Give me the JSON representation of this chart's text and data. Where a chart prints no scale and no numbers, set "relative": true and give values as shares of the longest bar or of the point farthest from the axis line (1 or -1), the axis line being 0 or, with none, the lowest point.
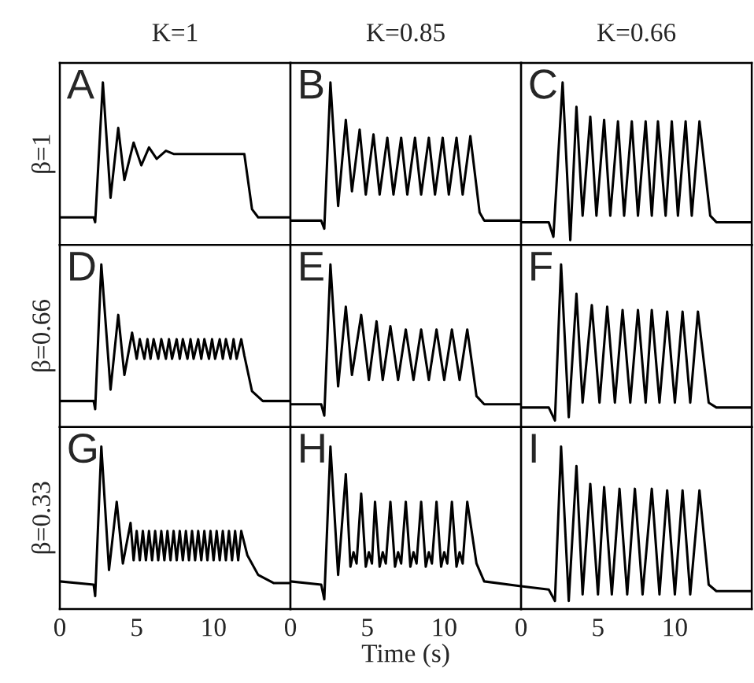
{
  "chart_data": [
    {
      "type": "line",
      "title": "K=1",
      "ylabel": "β=1",
      "annotations": [
        "A"
      ],
      "relative": true,
      "xlim": [
        0,
        15
      ],
      "xticks": [
        0,
        5,
        10
      ],
      "tick_labels": false,
      "x": [
        0,
        2.2,
        2.3,
        2.8,
        3.3,
        3.8,
        4.2,
        4.8,
        5.3,
        5.8,
        6.3,
        6.9,
        7.4,
        12.0,
        12.5,
        12.9,
        15
      ],
      "values": [
        0.17,
        0.17,
        0.14,
        1,
        0.29,
        0.72,
        0.4,
        0.63,
        0.49,
        0.6,
        0.53,
        0.58,
        0.56,
        0.56,
        0.22,
        0.17,
        0.17
      ]
    },
    {
      "type": "line",
      "title": "K=0.85",
      "annotations": [
        "B"
      ],
      "relative": true,
      "xlim": [
        0,
        15
      ],
      "xticks": [
        0,
        5,
        10
      ],
      "tick_labels": false,
      "x": [
        0,
        2.0,
        2.2,
        2.6,
        3.1,
        3.6,
        4.0,
        4.5,
        4.9,
        5.4,
        5.8,
        6.3,
        6.7,
        7.2,
        7.6,
        8.1,
        8.5,
        9.0,
        9.4,
        9.9,
        10.3,
        10.8,
        11.2,
        11.7,
        12.3,
        12.6,
        15
      ],
      "values": [
        0.15,
        0.15,
        0.1,
        1,
        0.24,
        0.77,
        0.33,
        0.71,
        0.31,
        0.68,
        0.31,
        0.66,
        0.31,
        0.66,
        0.31,
        0.66,
        0.31,
        0.66,
        0.31,
        0.66,
        0.31,
        0.66,
        0.31,
        0.67,
        0.2,
        0.15,
        0.15
      ]
    },
    {
      "type": "line",
      "title": "K=0.66",
      "annotations": [
        "C"
      ],
      "relative": true,
      "xlim": [
        0,
        15
      ],
      "xticks": [
        0,
        5,
        10
      ],
      "tick_labels": false,
      "x": [
        0,
        1.8,
        2.1,
        2.7,
        3.2,
        3.6,
        4.0,
        4.5,
        4.9,
        5.4,
        5.8,
        6.3,
        6.7,
        7.2,
        7.6,
        8.1,
        8.5,
        8.9,
        9.4,
        9.8,
        10.2,
        10.7,
        11.1,
        11.6,
        12.3,
        12.7,
        15
      ],
      "values": [
        0.14,
        0.14,
        0.05,
        1,
        0.03,
        0.85,
        0.18,
        0.79,
        0.18,
        0.77,
        0.18,
        0.76,
        0.18,
        0.76,
        0.18,
        0.76,
        0.18,
        0.76,
        0.18,
        0.76,
        0.18,
        0.76,
        0.18,
        0.76,
        0.18,
        0.14,
        0.14
      ]
    },
    {
      "type": "line",
      "ylabel": "β=0.66",
      "annotations": [
        "D"
      ],
      "relative": true,
      "xlim": [
        0,
        15
      ],
      "xticks": [
        0,
        5,
        10
      ],
      "tick_labels": false,
      "x": [
        0,
        2.2,
        2.3,
        2.7,
        3.3,
        3.8,
        4.2,
        4.7,
        5.0,
        5.2,
        5.5,
        5.7,
        5.9,
        6.1,
        6.4,
        6.6,
        6.9,
        7.1,
        7.3,
        7.6,
        7.8,
        8.0,
        8.3,
        8.5,
        8.7,
        9.0,
        9.2,
        9.4,
        9.7,
        9.9,
        10.1,
        10.4,
        10.6,
        10.8,
        11.1,
        11.3,
        11.5,
        11.8,
        12.0,
        12.5,
        13.2,
        15
      ],
      "values": [
        0.16,
        0.16,
        0.11,
        1,
        0.23,
        0.69,
        0.32,
        0.58,
        0.42,
        0.54,
        0.42,
        0.54,
        0.42,
        0.54,
        0.42,
        0.54,
        0.42,
        0.54,
        0.42,
        0.54,
        0.42,
        0.54,
        0.42,
        0.54,
        0.42,
        0.54,
        0.42,
        0.54,
        0.42,
        0.54,
        0.42,
        0.54,
        0.42,
        0.54,
        0.42,
        0.54,
        0.42,
        0.54,
        0.44,
        0.22,
        0.16,
        0.16
      ]
    },
    {
      "type": "line",
      "annotations": [
        "E"
      ],
      "relative": true,
      "xlim": [
        0,
        15
      ],
      "xticks": [
        0,
        5,
        10
      ],
      "tick_labels": false,
      "x": [
        0,
        2.0,
        2.2,
        2.6,
        3.1,
        3.6,
        4.0,
        4.6,
        5.1,
        5.6,
        6.0,
        6.5,
        7.0,
        7.5,
        8.0,
        8.5,
        9.0,
        9.5,
        10.0,
        10.5,
        11.0,
        11.5,
        12.1,
        12.6,
        15
      ],
      "values": [
        0.14,
        0.14,
        0.07,
        1,
        0.25,
        0.74,
        0.32,
        0.69,
        0.29,
        0.65,
        0.29,
        0.62,
        0.29,
        0.6,
        0.29,
        0.6,
        0.29,
        0.6,
        0.29,
        0.6,
        0.29,
        0.6,
        0.19,
        0.14,
        0.14
      ]
    },
    {
      "type": "line",
      "annotations": [
        "F"
      ],
      "relative": true,
      "xlim": [
        0,
        15
      ],
      "xticks": [
        0,
        5,
        10
      ],
      "tick_labels": false,
      "x": [
        0,
        1.8,
        2.2,
        2.6,
        3.1,
        3.6,
        4.0,
        4.6,
        5.1,
        5.6,
        6.1,
        6.6,
        7.1,
        7.6,
        8.1,
        8.5,
        9.0,
        9.5,
        10.0,
        10.5,
        11.0,
        11.5,
        12.2,
        12.7,
        15
      ],
      "values": [
        0.12,
        0.12,
        0.04,
        1,
        0.06,
        0.82,
        0.15,
        0.75,
        0.15,
        0.74,
        0.15,
        0.72,
        0.15,
        0.72,
        0.15,
        0.72,
        0.15,
        0.71,
        0.15,
        0.71,
        0.15,
        0.71,
        0.15,
        0.12,
        0.12
      ]
    },
    {
      "type": "line",
      "ylabel": "β=0.33",
      "annotations": [
        "G"
      ],
      "relative": true,
      "xlim": [
        0,
        15
      ],
      "xticks": [
        0,
        5,
        10
      ],
      "tick_labels": "x",
      "x": [
        0,
        2.2,
        2.3,
        2.7,
        3.2,
        3.7,
        4.1,
        4.6,
        4.8,
        5.0,
        5.2,
        5.4,
        5.6,
        5.8,
        6.0,
        6.2,
        6.4,
        6.6,
        6.8,
        7.0,
        7.2,
        7.4,
        7.6,
        7.8,
        8.0,
        8.2,
        8.4,
        8.6,
        8.8,
        9.0,
        9.2,
        9.4,
        9.6,
        9.8,
        10.0,
        10.2,
        10.4,
        10.6,
        10.8,
        11.0,
        11.2,
        11.4,
        11.6,
        11.8,
        12.2,
        12.9,
        13.9,
        15
      ],
      "values": [
        0.17,
        0.15,
        0.08,
        1,
        0.24,
        0.66,
        0.28,
        0.53,
        0.3,
        0.48,
        0.3,
        0.48,
        0.3,
        0.48,
        0.3,
        0.48,
        0.3,
        0.48,
        0.3,
        0.48,
        0.3,
        0.48,
        0.3,
        0.48,
        0.3,
        0.48,
        0.3,
        0.48,
        0.3,
        0.48,
        0.3,
        0.48,
        0.3,
        0.48,
        0.3,
        0.48,
        0.3,
        0.48,
        0.3,
        0.48,
        0.3,
        0.48,
        0.3,
        0.48,
        0.33,
        0.21,
        0.16,
        0.16
      ]
    },
    {
      "type": "line",
      "xlabel": "Time (s)",
      "annotations": [
        "H"
      ],
      "relative": true,
      "xlim": [
        0,
        15
      ],
      "xticks": [
        0,
        5,
        10
      ],
      "tick_labels": "x",
      "x": [
        0,
        2.0,
        2.2,
        2.6,
        3.1,
        3.6,
        3.9,
        4.1,
        4.3,
        4.6,
        4.9,
        5.1,
        5.3,
        5.5,
        5.8,
        6.0,
        6.2,
        6.5,
        6.8,
        7.0,
        7.2,
        7.5,
        7.8,
        8.0,
        8.2,
        8.5,
        8.8,
        9.0,
        9.2,
        9.5,
        9.8,
        10.0,
        10.2,
        10.5,
        10.8,
        11.0,
        11.2,
        11.5,
        12.1,
        12.6,
        15
      ],
      "values": [
        0.17,
        0.15,
        0.06,
        1,
        0.21,
        0.83,
        0.26,
        0.35,
        0.28,
        0.71,
        0.26,
        0.35,
        0.28,
        0.66,
        0.26,
        0.35,
        0.28,
        0.66,
        0.26,
        0.35,
        0.28,
        0.66,
        0.26,
        0.35,
        0.28,
        0.66,
        0.26,
        0.35,
        0.28,
        0.66,
        0.26,
        0.35,
        0.28,
        0.66,
        0.26,
        0.35,
        0.28,
        0.66,
        0.28,
        0.17,
        0.14
      ]
    },
    {
      "type": "line",
      "annotations": [
        "I"
      ],
      "relative": true,
      "xlim": [
        0,
        15
      ],
      "xticks": [
        0,
        5,
        10
      ],
      "tick_labels": "x",
      "x": [
        0,
        1.8,
        2.2,
        2.6,
        3.1,
        3.6,
        4.0,
        4.5,
        5.0,
        5.4,
        5.9,
        6.4,
        6.9,
        7.4,
        7.9,
        8.5,
        9.0,
        9.5,
        10.0,
        10.5,
        11.0,
        11.6,
        12.2,
        12.7,
        15
      ],
      "values": [
        0.14,
        0.12,
        0.05,
        1,
        0.05,
        0.88,
        0.09,
        0.77,
        0.09,
        0.75,
        0.09,
        0.74,
        0.09,
        0.74,
        0.09,
        0.74,
        0.09,
        0.73,
        0.09,
        0.73,
        0.09,
        0.73,
        0.15,
        0.11,
        0.11
      ]
    }
  ]
}
